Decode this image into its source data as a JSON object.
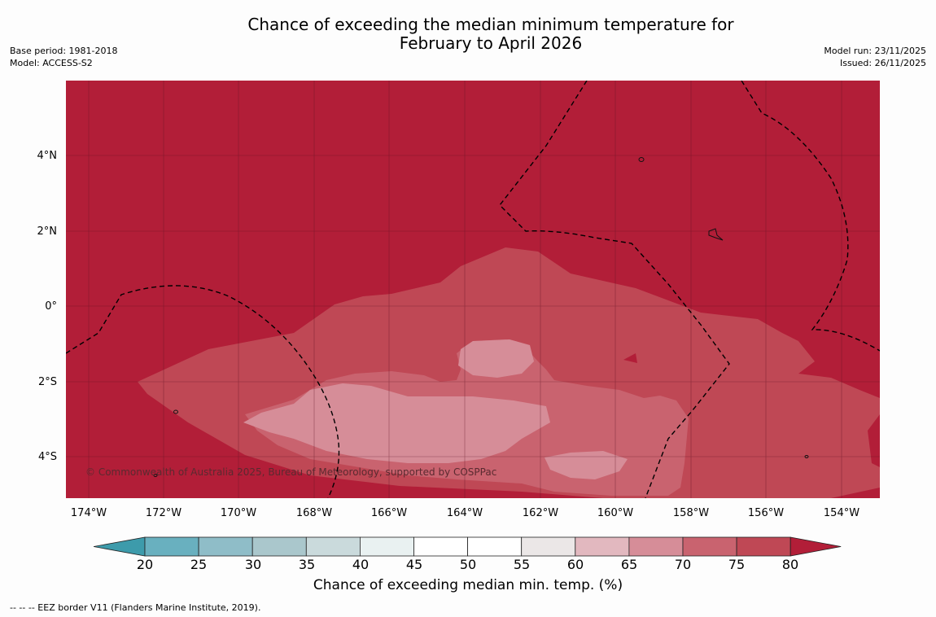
{
  "title": {
    "line1": "Chance of exceeding the median minimum temperature for",
    "line2": "February to April 2026"
  },
  "meta_left": {
    "base_period": "Base period: 1981-2018",
    "model": "Model: ACCESS-S2"
  },
  "meta_right": {
    "model_run": "Model run: 23/11/2025",
    "issued": "Issued: 26/11/2025"
  },
  "map": {
    "latitude_labels": [
      "4°N",
      "2°N",
      "0°",
      "2°S",
      "4°S"
    ],
    "longitude_labels": [
      "174°W",
      "172°W",
      "170°W",
      "168°W",
      "166°W",
      "164°W",
      "162°W",
      "160°W",
      "158°W",
      "156°W",
      "154°W"
    ],
    "copyright": "© Commonwealth of Australia 2025, Bureau of Meteorology, supported by COSPPac",
    "background_color": "#b21e38"
  },
  "colorbar": {
    "ticks": [
      "20",
      "25",
      "30",
      "35",
      "40",
      "45",
      "50",
      "55",
      "60",
      "65",
      "70",
      "75",
      "80"
    ],
    "colors": [
      "#3d9bab",
      "#69b0bf",
      "#8fbdc8",
      "#aac7cc",
      "#cadadc",
      "#e9f1f1",
      "#ffffff",
      "#ffffff",
      "#ebe7e7",
      "#e2b8bf",
      "#d68d98",
      "#c9636f",
      "#bf4855",
      "#b21e38"
    ],
    "label": "Chance of exceeding median min. temp. (%)"
  },
  "footnote": "--  --  -- EEZ border V11 (Flanders Marine Institute, 2019)."
}
